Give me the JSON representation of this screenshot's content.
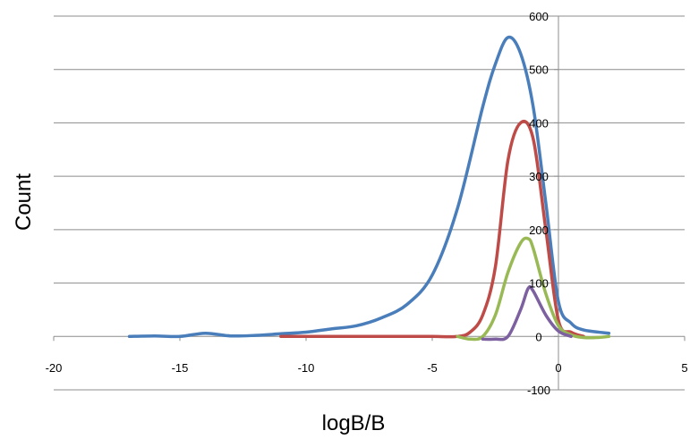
{
  "chart_data": {
    "type": "line",
    "xlabel": "logB/B",
    "ylabel": "Count",
    "xlim": [
      -20,
      5
    ],
    "ylim": [
      -100,
      600
    ],
    "x_ticks": [
      -20,
      -15,
      -10,
      -5,
      0,
      5
    ],
    "y_ticks": [
      -100,
      0,
      100,
      200,
      300,
      400,
      500,
      600
    ],
    "grid": "horizontal",
    "legend": "none",
    "series": [
      {
        "color": "#4a7ebb",
        "points": [
          [
            -17,
            0
          ],
          [
            -16,
            1
          ],
          [
            -15,
            0
          ],
          [
            -14,
            6
          ],
          [
            -13,
            1
          ],
          [
            -12,
            2
          ],
          [
            -11,
            5
          ],
          [
            -10,
            8
          ],
          [
            -9,
            14
          ],
          [
            -8,
            20
          ],
          [
            -7,
            35
          ],
          [
            -6,
            60
          ],
          [
            -5,
            115
          ],
          [
            -4,
            240
          ],
          [
            -3,
            430
          ],
          [
            -2.5,
            510
          ],
          [
            -2,
            560
          ],
          [
            -1.5,
            530
          ],
          [
            -1,
            430
          ],
          [
            -0.5,
            250
          ],
          [
            0,
            65
          ],
          [
            0.5,
            25
          ],
          [
            1,
            12
          ],
          [
            2,
            6
          ]
        ]
      },
      {
        "color": "#be4b48",
        "points": [
          [
            -11,
            0
          ],
          [
            -10,
            0
          ],
          [
            -9,
            0
          ],
          [
            -8,
            0
          ],
          [
            -7,
            0
          ],
          [
            -6,
            0
          ],
          [
            -5,
            0
          ],
          [
            -4,
            0
          ],
          [
            -3.5,
            8
          ],
          [
            -3,
            40
          ],
          [
            -2.5,
            130
          ],
          [
            -2,
            330
          ],
          [
            -1.5,
            400
          ],
          [
            -1,
            370
          ],
          [
            -0.5,
            200
          ],
          [
            0,
            30
          ],
          [
            0.5,
            8
          ],
          [
            1,
            0
          ]
        ]
      },
      {
        "color": "#98b954",
        "points": [
          [
            -4,
            0
          ],
          [
            -3.5,
            -5
          ],
          [
            -3,
            0
          ],
          [
            -2.5,
            40
          ],
          [
            -2,
            120
          ],
          [
            -1.5,
            175
          ],
          [
            -1.2,
            183
          ],
          [
            -1,
            165
          ],
          [
            -0.5,
            80
          ],
          [
            0,
            20
          ],
          [
            0.5,
            3
          ],
          [
            1,
            -2
          ],
          [
            1.5,
            -2
          ],
          [
            2,
            0
          ]
        ]
      },
      {
        "color": "#7d60a0",
        "points": [
          [
            -3,
            -5
          ],
          [
            -2.5,
            -5
          ],
          [
            -2,
            0
          ],
          [
            -1.5,
            50
          ],
          [
            -1.2,
            90
          ],
          [
            -1,
            85
          ],
          [
            -0.5,
            40
          ],
          [
            0,
            10
          ],
          [
            0.5,
            0
          ]
        ]
      }
    ]
  }
}
